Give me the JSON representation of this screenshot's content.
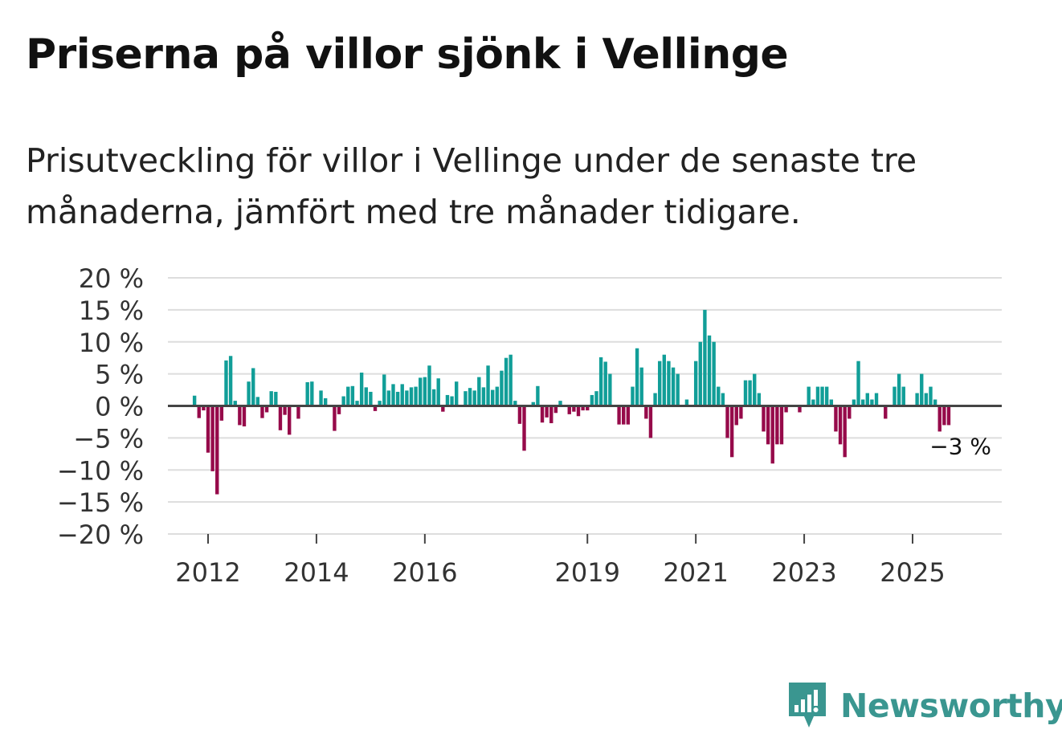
{
  "title": "Priserna på villor sjönk i Vellinge",
  "subtitle": "Prisutveckling för villor i Vellinge under de senaste tre månaderna, jämfört med tre månader tidigare.",
  "brand": {
    "name": "Newsworthy",
    "icon": "newsworthy-logo-icon",
    "color": "#3a9690"
  },
  "colors": {
    "positive": "#119e98",
    "negative": "#960a4a",
    "grid": "#dddddd",
    "zero_line": "#444444"
  },
  "chart_data": {
    "type": "bar",
    "ylim": [
      -20,
      20
    ],
    "y_ticks": [
      20,
      15,
      10,
      5,
      0,
      -5,
      -10,
      -15,
      -20
    ],
    "y_tick_labels": [
      "20 %",
      "15 %",
      "10 %",
      "5 %",
      "0 %",
      "−5 %",
      "−10 %",
      "−15 %",
      "−20 %"
    ],
    "x_tick_years": [
      2012,
      2014,
      2016,
      2019,
      2021,
      2023,
      2025
    ],
    "x_tick_labels": [
      "2012",
      "2014",
      "2016",
      "2019",
      "2021",
      "2023",
      "2025"
    ],
    "start_year": 2011.72,
    "end_year": 2025.99,
    "first_month": "2011-10",
    "monthly_values": [
      1.6,
      -1.9,
      -0.7,
      -7.3,
      -10.2,
      -13.8,
      -2.3,
      7.1,
      7.8,
      0.8,
      -3.0,
      -3.2,
      3.8,
      5.9,
      1.4,
      -1.9,
      -1.0,
      2.3,
      2.2,
      -3.8,
      -1.4,
      -4.5,
      0,
      -2.0,
      0,
      3.7,
      3.8,
      0,
      2.4,
      1.2,
      0,
      -3.9,
      -1.3,
      1.5,
      3.0,
      3.1,
      0.8,
      5.2,
      2.9,
      2.2,
      -0.8,
      0.8,
      4.9,
      2.4,
      3.4,
      2.2,
      3.4,
      2.4,
      2.9,
      3.0,
      4.4,
      4.5,
      6.3,
      2.6,
      4.3,
      -0.9,
      1.7,
      1.5,
      3.8,
      0,
      2.3,
      2.8,
      2.4,
      4.5,
      2.9,
      6.3,
      2.5,
      3.0,
      5.5,
      7.5,
      8.0,
      0.8,
      -2.8,
      -7.0,
      0,
      0.6,
      3.1,
      -2.6,
      -1.8,
      -2.7,
      -1.1,
      0.8,
      0,
      -1.3,
      -0.9,
      -1.6,
      -0.7,
      -0.7,
      1.7,
      2.3,
      7.6,
      6.9,
      5.0,
      0,
      -2.9,
      -2.9,
      -2.9,
      3.0,
      9.0,
      6.0,
      -2.0,
      -5.0,
      2.0,
      7.0,
      8.0,
      7.0,
      6.0,
      5.0,
      0,
      1.0,
      0,
      7.0,
      10.0,
      15.0,
      11.0,
      10.0,
      3.0,
      2.0,
      -5.0,
      -8.0,
      -3.0,
      -2.0,
      4.0,
      4.0,
      5.0,
      2.0,
      -4.0,
      -6.0,
      -9.0,
      -6.0,
      -6.0,
      -1.0,
      0,
      0,
      -1.0,
      0,
      3.0,
      1.0,
      3.0,
      3.0,
      3.0,
      1.0,
      -4.0,
      -6.0,
      -8.0,
      -2.0,
      1.0,
      7.0,
      1.0,
      2.0,
      1.0,
      2.0,
      0,
      -2.0,
      0,
      3.0,
      5.0,
      3.0,
      0,
      0,
      2.0,
      5.0,
      2.0,
      3.0,
      1.0,
      -4.0,
      -3.0,
      -3.0
    ],
    "last_value_label": "−3 %",
    "last_value": -3
  }
}
